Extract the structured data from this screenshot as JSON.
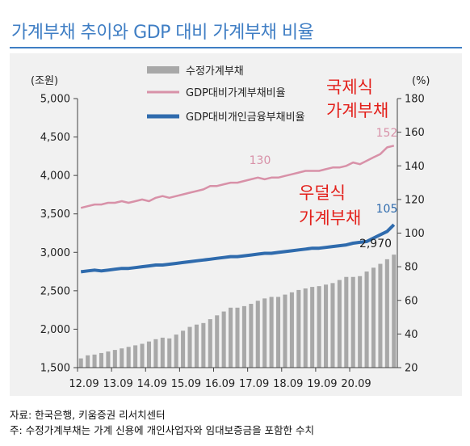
{
  "title": "가계부채 추이와 GDP 대비 가계부채 비율",
  "source": "자료: 한국은행,   키움증권 리서치센터",
  "note": "주: 수정가계부채는 가계 신용에 개인사업자와 임대보증금을 포함한 수치",
  "colors": {
    "title": "#3f7ec4",
    "bar": "#a8a8a8",
    "gdp_line": "#d891a8",
    "personal_line": "#2f6bad",
    "annotation": "#e3201b",
    "panel": "#f1f1f1"
  },
  "chart_data": {
    "type": "bar+line",
    "left_axis": {
      "unit_label": "(조원)",
      "min": 1500,
      "max": 5000,
      "ticks": [
        "1,500",
        "2,000",
        "2,500",
        "3,000",
        "3,500",
        "4,000",
        "4,500",
        "5,000"
      ],
      "tick_values": [
        1500,
        2000,
        2500,
        3000,
        3500,
        4000,
        4500,
        5000
      ]
    },
    "right_axis": {
      "unit_label": "(%)",
      "min": 20,
      "max": 180,
      "ticks": [
        "20",
        "40",
        "60",
        "80",
        "100",
        "120",
        "140",
        "160",
        "180"
      ],
      "tick_values": [
        20,
        40,
        60,
        80,
        100,
        120,
        140,
        160,
        180
      ]
    },
    "x_tick_labels": [
      "12.09",
      "13.09",
      "14.09",
      "15.09",
      "16.09",
      "17.09",
      "18.09",
      "19.09",
      "20.09"
    ],
    "legend": [
      "수정가계부채",
      "GDP대비가계부채비율",
      "GDP대비개인금융부채비율"
    ],
    "series": [
      {
        "name": "수정가계부채",
        "type": "bar",
        "axis": "left",
        "values": [
          1620,
          1660,
          1670,
          1690,
          1710,
          1730,
          1750,
          1770,
          1790,
          1810,
          1840,
          1870,
          1890,
          1880,
          1930,
          1980,
          2030,
          2060,
          2080,
          2130,
          2180,
          2230,
          2280,
          2280,
          2300,
          2330,
          2370,
          2400,
          2420,
          2420,
          2450,
          2480,
          2510,
          2530,
          2550,
          2560,
          2580,
          2600,
          2640,
          2680,
          2680,
          2690,
          2750,
          2800,
          2850,
          2910,
          2970
        ]
      },
      {
        "name": "GDP대비가계부채비율",
        "type": "line",
        "axis": "right",
        "values": [
          115,
          116,
          117,
          117,
          118,
          118,
          119,
          118,
          119,
          120,
          119,
          121,
          122,
          121,
          122,
          123,
          124,
          125,
          126,
          128,
          128,
          129,
          130,
          130,
          131,
          132,
          133,
          132,
          133,
          133,
          134,
          135,
          136,
          137,
          137,
          137,
          138,
          139,
          139,
          140,
          142,
          141,
          143,
          145,
          147,
          151,
          152
        ]
      },
      {
        "name": "GDP대비개인금융부채비율",
        "type": "line",
        "axis": "right",
        "values": [
          77,
          77.5,
          78,
          77.5,
          78,
          78.5,
          79,
          79,
          79.5,
          80,
          80.5,
          81,
          81,
          81.5,
          82,
          82.5,
          83,
          83.5,
          84,
          84.5,
          85,
          85.5,
          86,
          86,
          86.5,
          87,
          87.5,
          88,
          88,
          88.5,
          89,
          89.5,
          90,
          90.5,
          91,
          91,
          91.5,
          92,
          92.5,
          93,
          94,
          94.5,
          95,
          97,
          99,
          101,
          105
        ]
      }
    ],
    "data_labels": {
      "bar_last": "2,970",
      "gdp_mid": "130",
      "gdp_last": "152",
      "personal_last": "105"
    },
    "annotations": [
      "국제식",
      "가계부채",
      "우덜식",
      "가계부채"
    ]
  }
}
